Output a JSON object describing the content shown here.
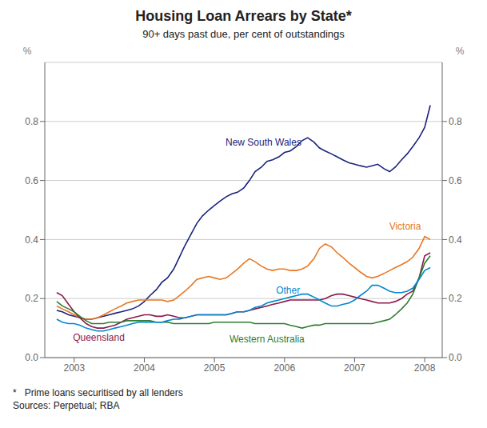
{
  "chart_data": {
    "type": "line",
    "title": "Housing Loan Arrears by State*",
    "subtitle": "90+ days past due, per cent of outstandings",
    "footnote": "*   Prime loans securitised by all lenders",
    "source": "Sources: Perpetual; RBA",
    "ylabel": "%",
    "y2label": "%",
    "ylim": [
      0.0,
      1.0
    ],
    "yticks": [
      {
        "value": 0.0,
        "label": "0.0"
      },
      0.2,
      0.4,
      0.6,
      0.8
    ],
    "y2lim": [
      0.0,
      1.0
    ],
    "y2ticks": [
      {
        "value": 0.0,
        "label": "0.0"
      },
      0.2,
      0.4,
      0.6,
      0.8
    ],
    "xlim": [
      2002.58,
      2008.25
    ],
    "xticks": [
      2003,
      2004,
      2005,
      2006,
      2007,
      2008
    ],
    "grid": true,
    "x": [
      2002.75,
      2002.83,
      2002.92,
      2003.0,
      2003.08,
      2003.17,
      2003.25,
      2003.33,
      2003.42,
      2003.5,
      2003.58,
      2003.67,
      2003.75,
      2003.83,
      2003.92,
      2004.0,
      2004.08,
      2004.17,
      2004.25,
      2004.33,
      2004.42,
      2004.5,
      2004.58,
      2004.67,
      2004.75,
      2004.83,
      2004.92,
      2005.0,
      2005.08,
      2005.17,
      2005.25,
      2005.33,
      2005.42,
      2005.5,
      2005.58,
      2005.67,
      2005.75,
      2005.83,
      2005.92,
      2006.0,
      2006.08,
      2006.17,
      2006.25,
      2006.33,
      2006.42,
      2006.5,
      2006.58,
      2006.67,
      2006.75,
      2006.83,
      2006.92,
      2007.0,
      2007.08,
      2007.17,
      2007.25,
      2007.33,
      2007.42,
      2007.5,
      2007.58,
      2007.67,
      2007.75,
      2007.83,
      2007.92,
      2008.0,
      2008.08
    ],
    "series": [
      {
        "name": "New South Wales",
        "color": "#1a237e",
        "values": [
          0.16,
          0.155,
          0.145,
          0.14,
          0.135,
          0.13,
          0.13,
          0.135,
          0.14,
          0.145,
          0.15,
          0.155,
          0.16,
          0.165,
          0.175,
          0.19,
          0.21,
          0.23,
          0.255,
          0.27,
          0.3,
          0.34,
          0.38,
          0.42,
          0.455,
          0.48,
          0.5,
          0.515,
          0.53,
          0.545,
          0.555,
          0.56,
          0.575,
          0.6,
          0.63,
          0.645,
          0.665,
          0.67,
          0.68,
          0.695,
          0.7,
          0.715,
          0.735,
          0.745,
          0.73,
          0.71,
          0.7,
          0.69,
          0.68,
          0.67,
          0.66,
          0.655,
          0.65,
          0.645,
          0.65,
          0.655,
          0.64,
          0.63,
          0.645,
          0.67,
          0.69,
          0.715,
          0.745,
          0.78,
          0.855
        ]
      },
      {
        "name": "Victoria",
        "color": "#e87722",
        "values": [
          0.175,
          0.165,
          0.155,
          0.145,
          0.135,
          0.13,
          0.13,
          0.135,
          0.145,
          0.155,
          0.165,
          0.175,
          0.185,
          0.19,
          0.195,
          0.195,
          0.195,
          0.195,
          0.195,
          0.19,
          0.195,
          0.21,
          0.225,
          0.245,
          0.265,
          0.27,
          0.275,
          0.27,
          0.265,
          0.27,
          0.285,
          0.3,
          0.32,
          0.335,
          0.325,
          0.31,
          0.3,
          0.295,
          0.3,
          0.3,
          0.295,
          0.295,
          0.3,
          0.31,
          0.335,
          0.37,
          0.385,
          0.375,
          0.355,
          0.34,
          0.32,
          0.305,
          0.29,
          0.275,
          0.27,
          0.275,
          0.285,
          0.295,
          0.305,
          0.315,
          0.325,
          0.34,
          0.37,
          0.41,
          0.4
        ]
      },
      {
        "name": "Queensland",
        "color": "#8b1a4a",
        "values": [
          0.22,
          0.21,
          0.18,
          0.155,
          0.135,
          0.115,
          0.105,
          0.1,
          0.1,
          0.105,
          0.11,
          0.12,
          0.13,
          0.135,
          0.14,
          0.145,
          0.145,
          0.14,
          0.14,
          0.145,
          0.14,
          0.135,
          0.135,
          0.14,
          0.145,
          0.145,
          0.145,
          0.145,
          0.145,
          0.145,
          0.15,
          0.155,
          0.155,
          0.16,
          0.165,
          0.17,
          0.175,
          0.18,
          0.185,
          0.19,
          0.195,
          0.195,
          0.195,
          0.195,
          0.195,
          0.195,
          0.2,
          0.21,
          0.215,
          0.215,
          0.21,
          0.205,
          0.2,
          0.195,
          0.19,
          0.185,
          0.185,
          0.185,
          0.19,
          0.2,
          0.215,
          0.225,
          0.27,
          0.345,
          0.355
        ]
      },
      {
        "name": "Western Australia",
        "color": "#2e7d32",
        "values": [
          0.19,
          0.175,
          0.165,
          0.155,
          0.14,
          0.125,
          0.115,
          0.115,
          0.115,
          0.12,
          0.12,
          0.12,
          0.125,
          0.125,
          0.125,
          0.125,
          0.125,
          0.12,
          0.12,
          0.12,
          0.115,
          0.115,
          0.115,
          0.115,
          0.115,
          0.115,
          0.115,
          0.12,
          0.12,
          0.12,
          0.12,
          0.12,
          0.12,
          0.12,
          0.115,
          0.115,
          0.115,
          0.115,
          0.115,
          0.115,
          0.11,
          0.105,
          0.1,
          0.105,
          0.11,
          0.11,
          0.115,
          0.115,
          0.115,
          0.115,
          0.115,
          0.115,
          0.115,
          0.115,
          0.115,
          0.12,
          0.125,
          0.13,
          0.145,
          0.165,
          0.185,
          0.215,
          0.27,
          0.32,
          0.345
        ]
      },
      {
        "name": "Other",
        "color": "#0288d1",
        "values": [
          0.13,
          0.12,
          0.115,
          0.115,
          0.11,
          0.1,
          0.095,
          0.09,
          0.09,
          0.095,
          0.1,
          0.105,
          0.11,
          0.115,
          0.12,
          0.12,
          0.12,
          0.12,
          0.12,
          0.125,
          0.13,
          0.13,
          0.135,
          0.14,
          0.145,
          0.145,
          0.145,
          0.145,
          0.145,
          0.145,
          0.15,
          0.155,
          0.155,
          0.16,
          0.17,
          0.175,
          0.185,
          0.19,
          0.195,
          0.2,
          0.205,
          0.21,
          0.215,
          0.215,
          0.205,
          0.195,
          0.185,
          0.175,
          0.175,
          0.18,
          0.185,
          0.195,
          0.21,
          0.225,
          0.245,
          0.245,
          0.235,
          0.225,
          0.22,
          0.22,
          0.225,
          0.235,
          0.265,
          0.295,
          0.305
        ]
      }
    ],
    "annotations": [
      {
        "text": "New South Wales",
        "x": 2005.7,
        "y": 0.73,
        "color": "#1a237e"
      },
      {
        "text": "Victoria",
        "x": 2007.72,
        "y": 0.445,
        "color": "#e87722"
      },
      {
        "text": "Queensland",
        "x": 2003.35,
        "y": 0.068,
        "color": "#8b1a4a"
      },
      {
        "text": "Western Australia",
        "x": 2005.75,
        "y": 0.063,
        "color": "#2e7d32"
      },
      {
        "text": "Other",
        "x": 2006.05,
        "y": 0.228,
        "color": "#0288d1"
      }
    ]
  }
}
